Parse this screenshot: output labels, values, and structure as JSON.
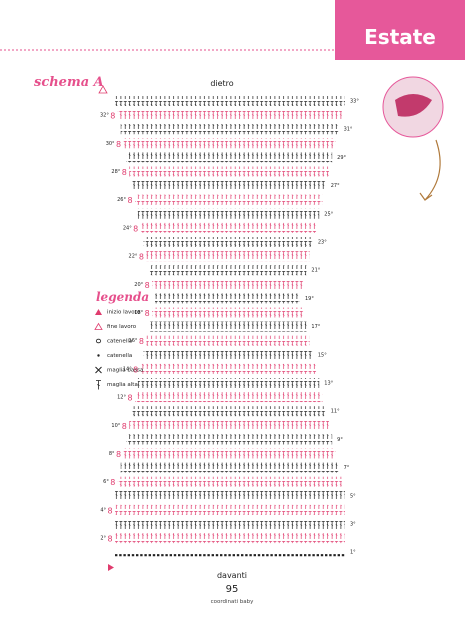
{
  "header": {
    "tab": "Estate"
  },
  "chart": {
    "title": "schema A",
    "top": "dietro",
    "bottom": "davanti",
    "rows": [
      "33°",
      "32°",
      "31°",
      "30°",
      "29°",
      "28°",
      "27°",
      "26°",
      "25°",
      "24°",
      "23°",
      "22°",
      "21°",
      "20°",
      "19°",
      "18°",
      "17°",
      "16°",
      "15°",
      "14°",
      "13°",
      "12°",
      "11°",
      "10°",
      "9°",
      "8°",
      "7°",
      "6°",
      "5°",
      "4°",
      "3°",
      "2°",
      "1°"
    ]
  },
  "legend": {
    "title": "legenda",
    "items": [
      "inizio lavoro",
      "fine lavoro",
      "catenella",
      "catenella",
      "maglia bassa",
      "maglia alta"
    ]
  },
  "footer": {
    "page": "95",
    "caption": "coordinati baby"
  }
}
